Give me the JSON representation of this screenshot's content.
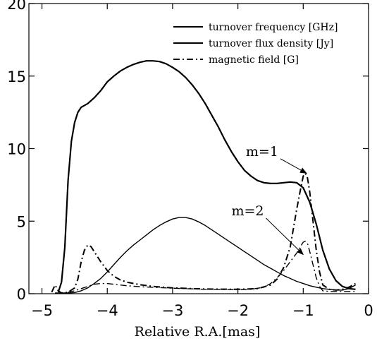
{
  "chart_data": {
    "type": "line",
    "xlabel": "Relative R.A.[mas]",
    "ylabel": "",
    "xlim": [
      -5.2,
      0
    ],
    "ylim": [
      0,
      20
    ],
    "xticks": [
      -5,
      -4,
      -3,
      -2,
      -1,
      0
    ],
    "yticks": [
      0,
      5,
      10,
      15,
      20
    ],
    "xtick_labels": [
      "−5",
      "−4",
      "−3",
      "−2",
      "−1",
      "0"
    ],
    "ytick_labels": [
      "0",
      "5",
      "10",
      "15",
      "20"
    ],
    "grid": false,
    "legend_position": "top-right",
    "series": [
      {
        "name": "turnover frequency [GHz]",
        "style": "solid",
        "width": 2.2,
        "points": [
          [
            -4.75,
            0.1
          ],
          [
            -4.7,
            0.8
          ],
          [
            -4.65,
            3.2
          ],
          [
            -4.6,
            7.8
          ],
          [
            -4.55,
            10.5
          ],
          [
            -4.5,
            11.8
          ],
          [
            -4.45,
            12.5
          ],
          [
            -4.4,
            12.85
          ],
          [
            -4.3,
            13.1
          ],
          [
            -4.2,
            13.5
          ],
          [
            -4.1,
            14.0
          ],
          [
            -4.0,
            14.6
          ],
          [
            -3.9,
            15.0
          ],
          [
            -3.8,
            15.35
          ],
          [
            -3.7,
            15.6
          ],
          [
            -3.6,
            15.8
          ],
          [
            -3.5,
            15.95
          ],
          [
            -3.4,
            16.05
          ],
          [
            -3.3,
            16.05
          ],
          [
            -3.2,
            16.0
          ],
          [
            -3.1,
            15.85
          ],
          [
            -3.0,
            15.6
          ],
          [
            -2.9,
            15.3
          ],
          [
            -2.8,
            14.9
          ],
          [
            -2.7,
            14.4
          ],
          [
            -2.6,
            13.8
          ],
          [
            -2.5,
            13.1
          ],
          [
            -2.4,
            12.3
          ],
          [
            -2.3,
            11.5
          ],
          [
            -2.2,
            10.6
          ],
          [
            -2.1,
            9.8
          ],
          [
            -2.0,
            9.1
          ],
          [
            -1.9,
            8.5
          ],
          [
            -1.8,
            8.1
          ],
          [
            -1.7,
            7.8
          ],
          [
            -1.6,
            7.65
          ],
          [
            -1.5,
            7.6
          ],
          [
            -1.4,
            7.6
          ],
          [
            -1.3,
            7.65
          ],
          [
            -1.2,
            7.7
          ],
          [
            -1.1,
            7.65
          ],
          [
            -1.0,
            7.3
          ],
          [
            -0.9,
            6.3
          ],
          [
            -0.8,
            4.8
          ],
          [
            -0.7,
            3.0
          ],
          [
            -0.6,
            1.7
          ],
          [
            -0.5,
            0.9
          ],
          [
            -0.4,
            0.5
          ],
          [
            -0.3,
            0.35
          ],
          [
            -0.2,
            0.3
          ]
        ]
      },
      {
        "name": "turnover flux density [Jy]",
        "style": "solid",
        "width": 1.4,
        "points": [
          [
            -4.8,
            0.05
          ],
          [
            -4.6,
            0.05
          ],
          [
            -4.5,
            0.08
          ],
          [
            -4.4,
            0.2
          ],
          [
            -4.3,
            0.4
          ],
          [
            -4.2,
            0.7
          ],
          [
            -4.1,
            1.05
          ],
          [
            -4.0,
            1.5
          ],
          [
            -3.9,
            2.0
          ],
          [
            -3.8,
            2.5
          ],
          [
            -3.7,
            2.95
          ],
          [
            -3.6,
            3.35
          ],
          [
            -3.5,
            3.7
          ],
          [
            -3.4,
            4.05
          ],
          [
            -3.3,
            4.4
          ],
          [
            -3.2,
            4.7
          ],
          [
            -3.1,
            4.95
          ],
          [
            -3.0,
            5.15
          ],
          [
            -2.9,
            5.25
          ],
          [
            -2.8,
            5.25
          ],
          [
            -2.7,
            5.15
          ],
          [
            -2.6,
            4.95
          ],
          [
            -2.5,
            4.7
          ],
          [
            -2.4,
            4.4
          ],
          [
            -2.3,
            4.1
          ],
          [
            -2.2,
            3.8
          ],
          [
            -2.1,
            3.5
          ],
          [
            -2.0,
            3.2
          ],
          [
            -1.9,
            2.9
          ],
          [
            -1.8,
            2.6
          ],
          [
            -1.7,
            2.3
          ],
          [
            -1.6,
            2.0
          ],
          [
            -1.5,
            1.75
          ],
          [
            -1.4,
            1.5
          ],
          [
            -1.3,
            1.25
          ],
          [
            -1.2,
            1.05
          ],
          [
            -1.1,
            0.85
          ],
          [
            -1.0,
            0.7
          ],
          [
            -0.9,
            0.55
          ],
          [
            -0.8,
            0.45
          ],
          [
            -0.7,
            0.35
          ],
          [
            -0.6,
            0.3
          ],
          [
            -0.5,
            0.25
          ],
          [
            -0.4,
            0.25
          ],
          [
            -0.3,
            0.35
          ],
          [
            -0.2,
            0.6
          ]
        ]
      },
      {
        "name": "magnetic field [G]",
        "style": "dashdot",
        "width": 2.0,
        "points": [
          [
            -4.85,
            0.1
          ],
          [
            -4.8,
            0.6
          ],
          [
            -4.75,
            0.2
          ],
          [
            -4.7,
            0.05
          ],
          [
            -4.6,
            0.1
          ],
          [
            -4.5,
            0.4
          ],
          [
            -4.45,
            1.0
          ],
          [
            -4.4,
            2.2
          ],
          [
            -4.35,
            3.0
          ],
          [
            -4.3,
            3.35
          ],
          [
            -4.25,
            3.25
          ],
          [
            -4.2,
            2.9
          ],
          [
            -4.1,
            2.2
          ],
          [
            -4.0,
            1.6
          ],
          [
            -3.9,
            1.2
          ],
          [
            -3.8,
            0.95
          ],
          [
            -3.7,
            0.8
          ],
          [
            -3.5,
            0.62
          ],
          [
            -3.3,
            0.5
          ],
          [
            -3.0,
            0.4
          ],
          [
            -2.5,
            0.32
          ],
          [
            -2.0,
            0.3
          ],
          [
            -1.7,
            0.35
          ],
          [
            -1.5,
            0.6
          ],
          [
            -1.4,
            1.0
          ],
          [
            -1.3,
            1.8
          ],
          [
            -1.2,
            3.2
          ],
          [
            -1.15,
            4.5
          ],
          [
            -1.1,
            5.8
          ],
          [
            -1.05,
            7.0
          ],
          [
            -1.0,
            8.1
          ],
          [
            -0.97,
            8.3
          ],
          [
            -0.94,
            8.1
          ],
          [
            -0.9,
            7.0
          ],
          [
            -0.85,
            5.0
          ],
          [
            -0.8,
            3.0
          ],
          [
            -0.75,
            1.5
          ],
          [
            -0.7,
            0.6
          ],
          [
            -0.6,
            0.3
          ],
          [
            -0.5,
            0.25
          ],
          [
            -0.4,
            0.3
          ],
          [
            -0.3,
            0.45
          ],
          [
            -0.2,
            0.7
          ]
        ]
      },
      {
        "name": "",
        "style": "dashdot",
        "width": 1.4,
        "points": [
          [
            -4.6,
            0.1
          ],
          [
            -4.5,
            0.2
          ],
          [
            -4.4,
            0.35
          ],
          [
            -4.3,
            0.5
          ],
          [
            -4.2,
            0.65
          ],
          [
            -4.1,
            0.7
          ],
          [
            -4.0,
            0.7
          ],
          [
            -3.9,
            0.65
          ],
          [
            -3.7,
            0.55
          ],
          [
            -3.5,
            0.48
          ],
          [
            -3.0,
            0.38
          ],
          [
            -2.5,
            0.3
          ],
          [
            -2.0,
            0.28
          ],
          [
            -1.8,
            0.3
          ],
          [
            -1.6,
            0.45
          ],
          [
            -1.5,
            0.7
          ],
          [
            -1.4,
            1.1
          ],
          [
            -1.3,
            1.6
          ],
          [
            -1.2,
            2.2
          ],
          [
            -1.1,
            2.8
          ],
          [
            -1.05,
            3.2
          ],
          [
            -1.0,
            3.55
          ],
          [
            -0.97,
            3.62
          ],
          [
            -0.93,
            3.4
          ],
          [
            -0.9,
            2.9
          ],
          [
            -0.85,
            2.0
          ],
          [
            -0.8,
            1.1
          ],
          [
            -0.75,
            0.5
          ],
          [
            -0.7,
            0.2
          ],
          [
            -0.6,
            0.15
          ],
          [
            -0.4,
            0.15
          ],
          [
            -0.2,
            0.15
          ]
        ]
      }
    ],
    "annotations": [
      {
        "text": "m=1",
        "xy": [
          -0.95,
          8.3
        ],
        "xytext": [
          -1.63,
          9.5
        ]
      },
      {
        "text": "m=2",
        "xy": [
          -1.0,
          2.7
        ],
        "xytext": [
          -1.85,
          5.4
        ]
      }
    ]
  }
}
